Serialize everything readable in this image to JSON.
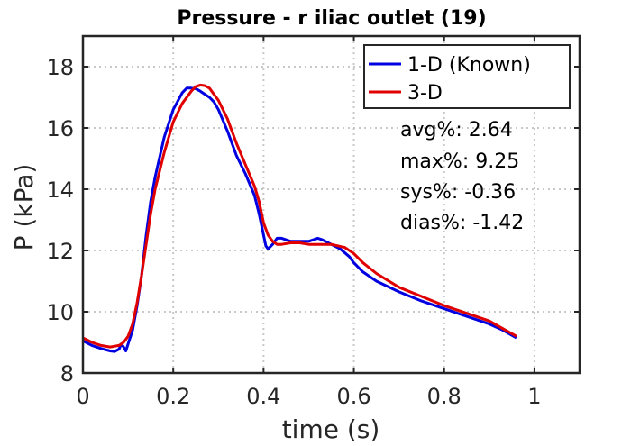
{
  "chart_data": {
    "type": "line",
    "title": "Pressure - r iliac outlet (19)",
    "xlabel": "time (s)",
    "ylabel": "P (kPa)",
    "xlim": [
      0,
      1.1
    ],
    "ylim": [
      8,
      19
    ],
    "xticks": [
      0,
      0.2,
      0.4,
      0.6,
      0.8,
      1
    ],
    "xtick_labels": [
      "0",
      "0.2",
      "0.4",
      "0.6",
      "0.8",
      "1"
    ],
    "yticks": [
      8,
      10,
      12,
      14,
      16,
      18
    ],
    "ytick_labels": [
      "8",
      "10",
      "12",
      "14",
      "16",
      "18"
    ],
    "grid": true,
    "legend_position": "top-right",
    "series": [
      {
        "name": "1-D (Known)",
        "color": "#0000e0",
        "x": [
          0,
          0.02,
          0.04,
          0.06,
          0.07,
          0.08,
          0.085,
          0.09,
          0.095,
          0.1,
          0.11,
          0.12,
          0.13,
          0.14,
          0.15,
          0.16,
          0.18,
          0.2,
          0.22,
          0.23,
          0.24,
          0.25,
          0.26,
          0.27,
          0.28,
          0.29,
          0.3,
          0.32,
          0.34,
          0.36,
          0.38,
          0.39,
          0.4,
          0.405,
          0.41,
          0.42,
          0.43,
          0.44,
          0.46,
          0.48,
          0.5,
          0.52,
          0.53,
          0.55,
          0.57,
          0.59,
          0.6,
          0.62,
          0.65,
          0.7,
          0.75,
          0.8,
          0.85,
          0.9,
          0.93,
          0.96
        ],
        "y": [
          9.05,
          8.9,
          8.8,
          8.72,
          8.7,
          8.78,
          8.95,
          8.85,
          8.72,
          8.95,
          9.4,
          10.2,
          11.2,
          12.5,
          13.6,
          14.4,
          15.7,
          16.6,
          17.15,
          17.3,
          17.3,
          17.28,
          17.2,
          17.1,
          17.0,
          16.85,
          16.6,
          15.9,
          15.1,
          14.5,
          13.8,
          13.2,
          12.5,
          12.15,
          12.05,
          12.2,
          12.4,
          12.4,
          12.3,
          12.3,
          12.3,
          12.4,
          12.35,
          12.2,
          12.05,
          11.8,
          11.6,
          11.3,
          11.0,
          10.65,
          10.35,
          10.1,
          9.85,
          9.6,
          9.4,
          9.15
        ]
      },
      {
        "name": "3-D",
        "color": "#e00000",
        "x": [
          0,
          0.02,
          0.04,
          0.06,
          0.08,
          0.09,
          0.1,
          0.11,
          0.12,
          0.13,
          0.14,
          0.15,
          0.16,
          0.18,
          0.2,
          0.22,
          0.24,
          0.25,
          0.26,
          0.27,
          0.28,
          0.29,
          0.3,
          0.32,
          0.34,
          0.36,
          0.38,
          0.39,
          0.4,
          0.41,
          0.42,
          0.43,
          0.44,
          0.46,
          0.48,
          0.5,
          0.52,
          0.55,
          0.58,
          0.6,
          0.62,
          0.65,
          0.7,
          0.75,
          0.8,
          0.85,
          0.9,
          0.93,
          0.96
        ],
        "y": [
          9.15,
          9.0,
          8.9,
          8.85,
          8.9,
          9.0,
          9.2,
          9.6,
          10.3,
          11.2,
          12.2,
          13.2,
          14.0,
          15.2,
          16.2,
          16.8,
          17.2,
          17.35,
          17.4,
          17.38,
          17.3,
          17.1,
          16.9,
          16.3,
          15.5,
          14.8,
          14.1,
          13.6,
          12.9,
          12.5,
          12.3,
          12.2,
          12.2,
          12.25,
          12.25,
          12.2,
          12.2,
          12.2,
          12.1,
          11.9,
          11.6,
          11.25,
          10.8,
          10.5,
          10.2,
          9.95,
          9.7,
          9.45,
          9.2
        ]
      }
    ],
    "annotations": [
      "avg%: 2.64",
      "max%: 9.25",
      "sys%: -0.36",
      "dias%: -1.42"
    ]
  }
}
